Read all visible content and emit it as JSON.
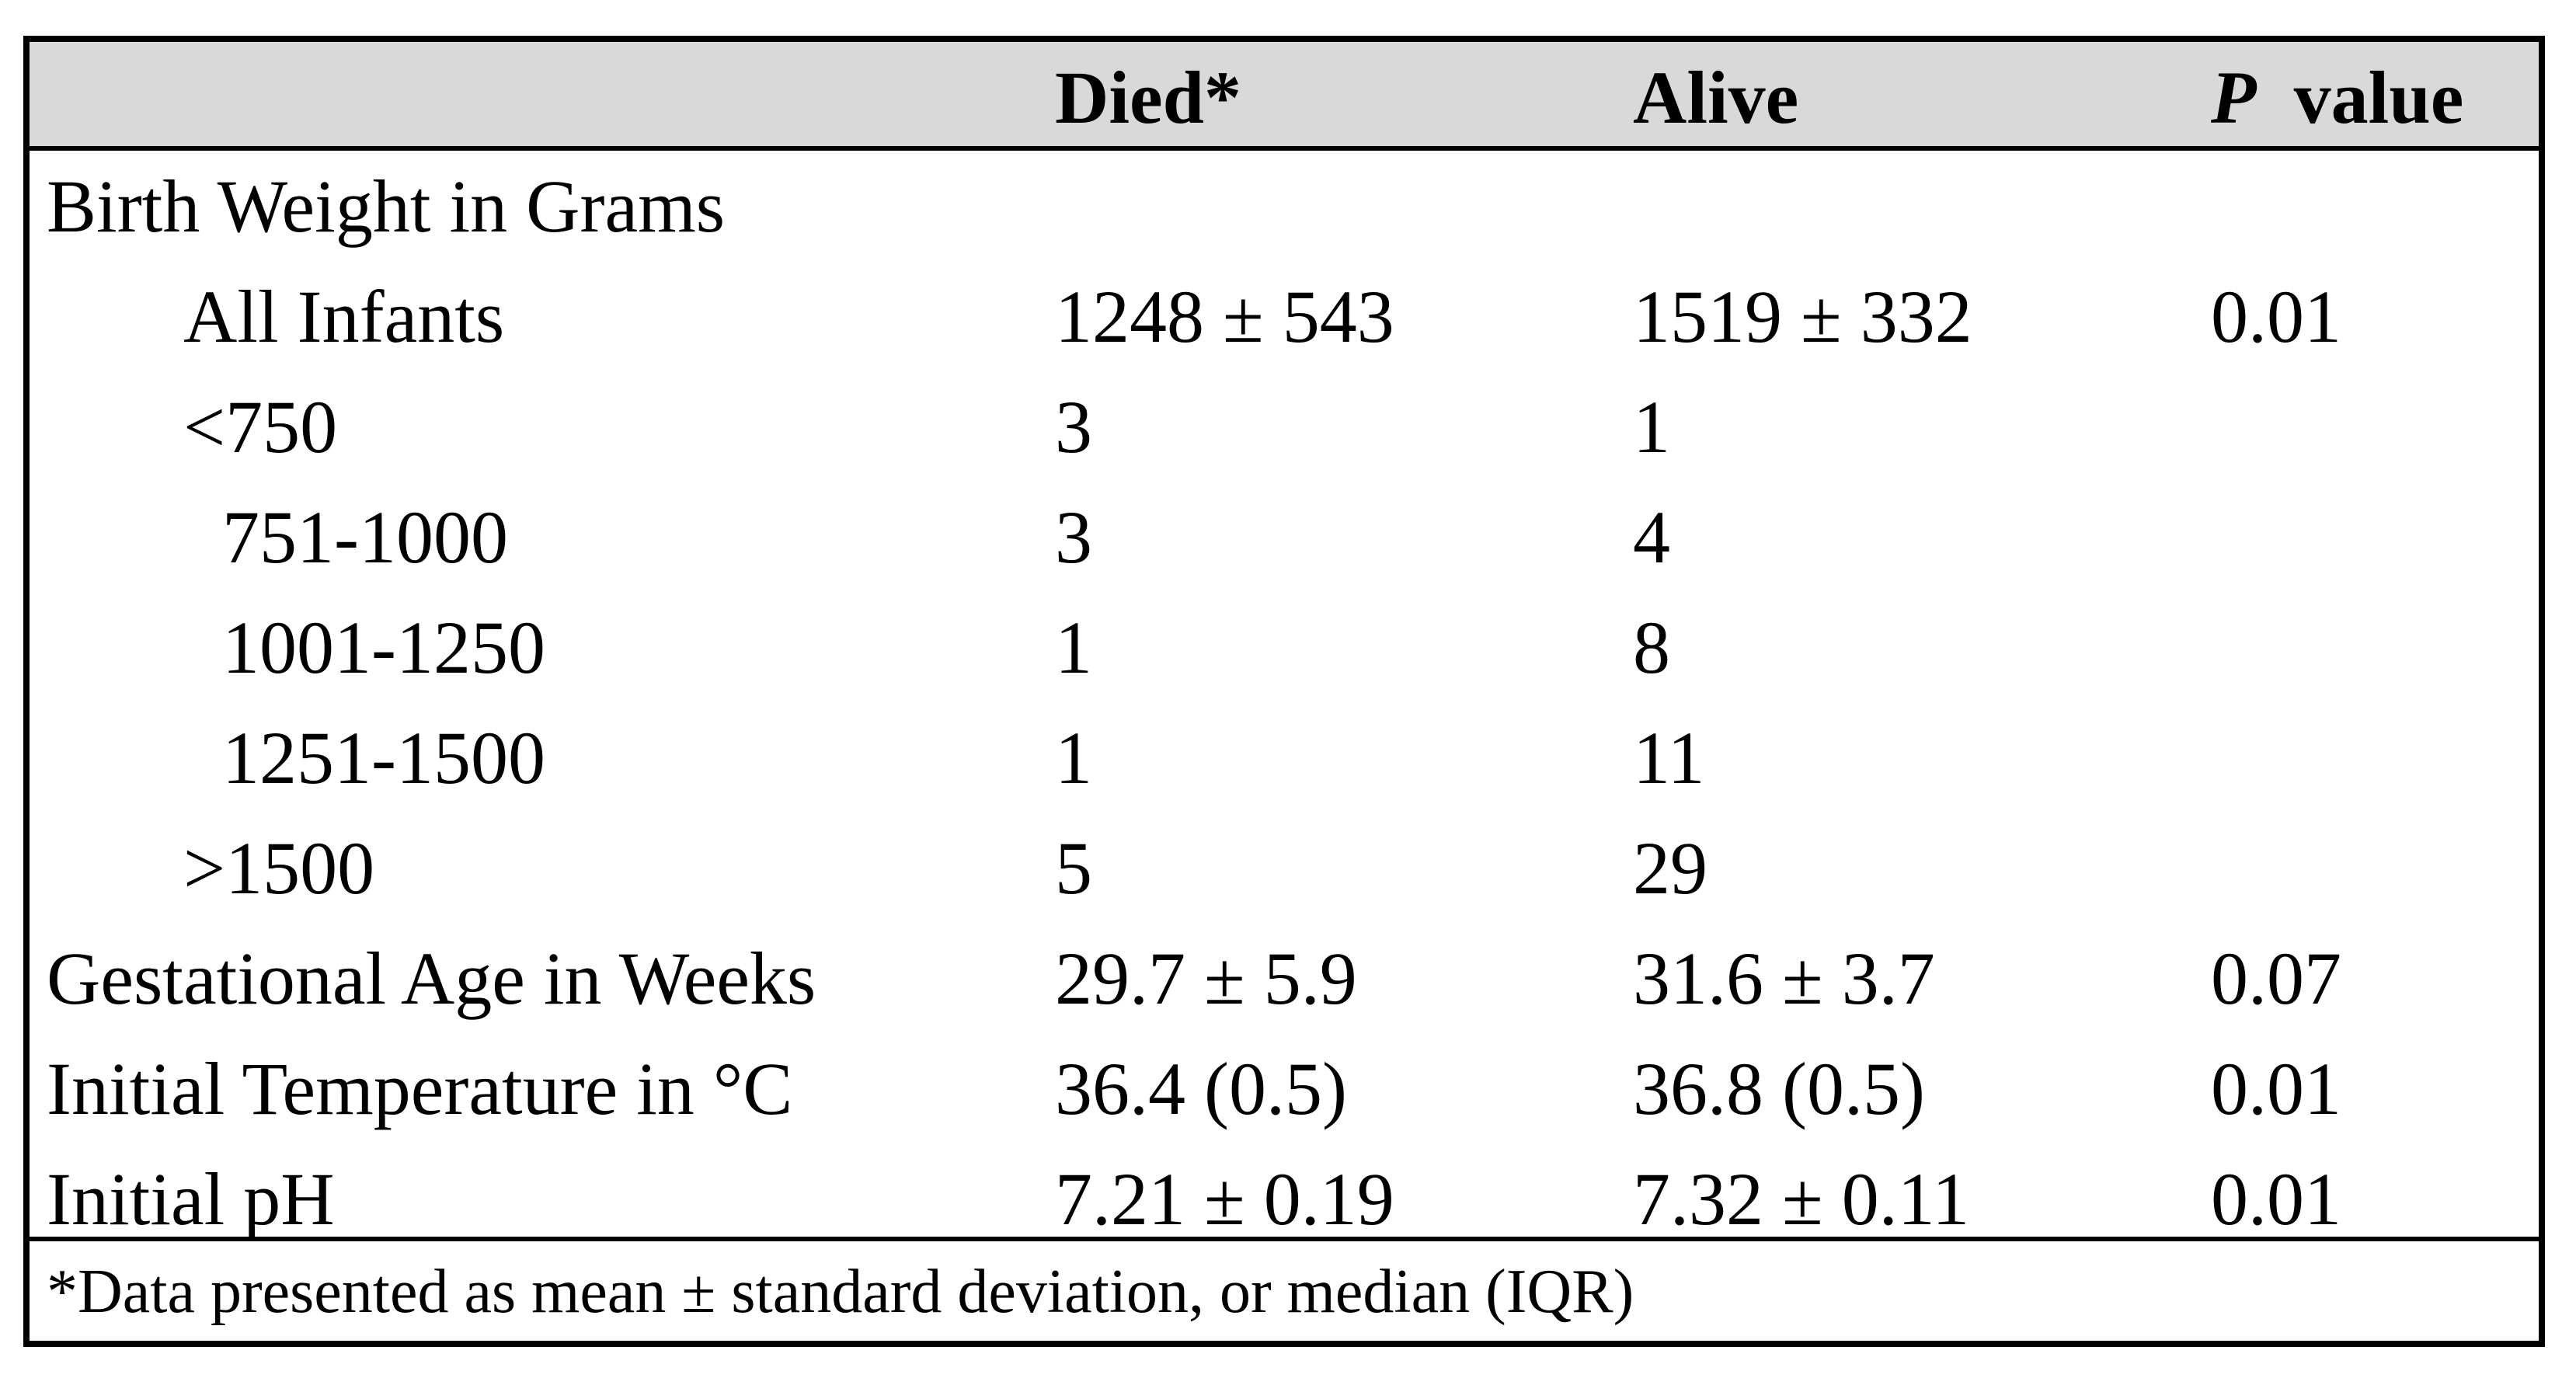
{
  "table": {
    "headers": {
      "label": "",
      "died": "Died*",
      "alive": "Alive",
      "p_value_italic": "P",
      "p_value_rest": "value"
    },
    "rows": [
      {
        "label": "Birth Weight in Grams",
        "died": "",
        "alive": "",
        "p": "",
        "indent": 0
      },
      {
        "label": "All Infants",
        "died": "1248 ± 543",
        "alive": "1519 ± 332",
        "p": "0.01",
        "indent": 1
      },
      {
        "label": "<750",
        "died": "3",
        "alive": "1",
        "p": "",
        "indent": 1
      },
      {
        "label": "751-1000",
        "died": "3",
        "alive": "4",
        "p": "",
        "indent": 2
      },
      {
        "label": "1001-1250",
        "died": "1",
        "alive": "8",
        "p": "",
        "indent": 2
      },
      {
        "label": "1251-1500",
        "died": "1",
        "alive": "11",
        "p": "",
        "indent": 2
      },
      {
        "label": ">1500",
        "died": "5",
        "alive": "29",
        "p": "",
        "indent": 1
      },
      {
        "label": "Gestational Age in Weeks",
        "died": "29.7 ± 5.9",
        "alive": "31.6 ± 3.7",
        "p": "0.07",
        "indent": 0
      },
      {
        "label": "Initial Temperature in °C",
        "died": "36.4 (0.5)",
        "alive": "36.8 (0.5)",
        "p": "0.01",
        "indent": 0
      },
      {
        "label": "Initial pH",
        "died": "7.21 ± 0.19",
        "alive": "7.32 ± 0.11",
        "p": "0.01",
        "indent": 0
      }
    ],
    "footnote": "*Data presented as mean ± standard deviation, or median (IQR)"
  },
  "colors": {
    "header_background": "#d9d9d9",
    "border": "#000000",
    "text": "#000000"
  }
}
